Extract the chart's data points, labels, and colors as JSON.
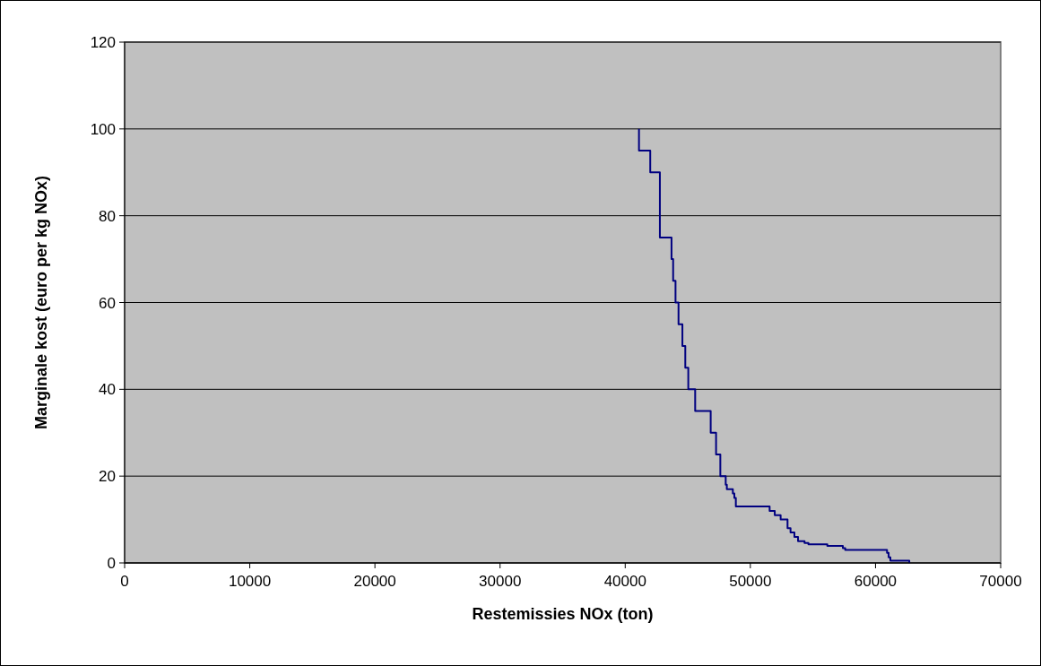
{
  "chart_data": {
    "type": "step",
    "xlabel": "Restemissies NOx (ton)",
    "ylabel": "Marginale kost (euro per kg NOx)",
    "xlim": [
      0,
      70000
    ],
    "xticks": [
      0,
      10000,
      20000,
      30000,
      40000,
      50000,
      60000,
      70000
    ],
    "ylim": [
      0,
      120
    ],
    "yticks": [
      0,
      20,
      40,
      60,
      80,
      100,
      120
    ],
    "grid": "y",
    "series": [
      {
        "color": "#000080",
        "x": [
          41100,
          41100,
          42000,
          42770,
          43700,
          43830,
          44020,
          44260,
          44570,
          44800,
          45040,
          45590,
          46830,
          47260,
          47600,
          48030,
          48120,
          48600,
          48720,
          48840,
          51540,
          51950,
          52420,
          52970,
          53210,
          53520,
          53810,
          54330,
          54640,
          56150,
          57390,
          57580,
          60920,
          61050,
          61190,
          62700
        ],
        "values": [
          100,
          95,
          90,
          75,
          70,
          65,
          60,
          55,
          50,
          45,
          40,
          35,
          30,
          25,
          20,
          18,
          17,
          16,
          15,
          13,
          12,
          11,
          10,
          8,
          7,
          6,
          5,
          4.6,
          4.3,
          3.9,
          3.4,
          3,
          2.3,
          1.3,
          0.5,
          0
        ]
      }
    ]
  }
}
